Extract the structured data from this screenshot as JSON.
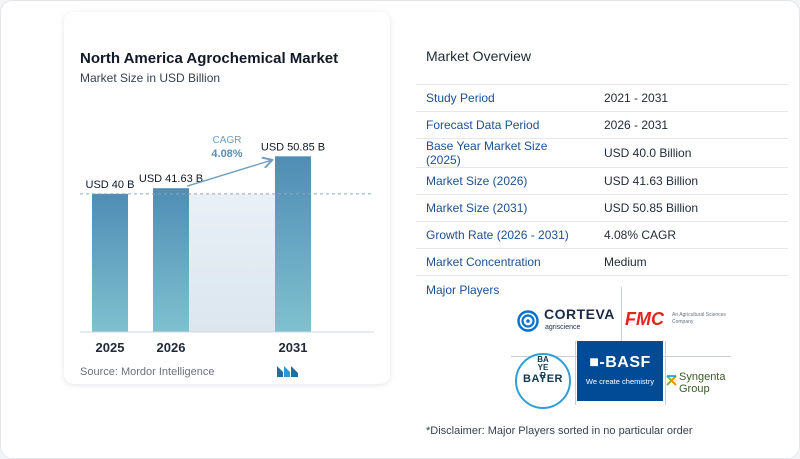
{
  "chart_data": {
    "type": "bar",
    "title": "North America Agrochemical Market",
    "subtitle": "Market Size in USD Billion",
    "categories": [
      "2025",
      "2026",
      "2031"
    ],
    "values": [
      40,
      41.63,
      50.85
    ],
    "data_labels": [
      "USD 40 B",
      "USD 41.63 B",
      "USD 50.85 B"
    ],
    "ylim": [
      0,
      55
    ],
    "annotation": {
      "label": "CAGR",
      "value": "4.08%"
    },
    "bar_color": "#5a9bc0",
    "highlight_color": "#e6eef5",
    "reference_line": "dashed at the 2025 value"
  },
  "source": "Source:  Mordor Intelligence",
  "overview": {
    "title": "Market Overview",
    "rows": [
      {
        "label": "Study Period",
        "value": "2021 - 2031"
      },
      {
        "label": "Forecast Data Period",
        "value": "2026 - 2031"
      },
      {
        "label": "Base Year Market Size (2025)",
        "value": "USD 40.0 Billion"
      },
      {
        "label": "Market Size (2026)",
        "value": "USD 41.63 Billion"
      },
      {
        "label": "Market Size (2031)",
        "value": "USD 50.85 Billion"
      },
      {
        "label": "Growth Rate (2026 - 2031)",
        "value": "4.08% CAGR"
      },
      {
        "label": "Market Concentration",
        "value": "Medium"
      }
    ]
  },
  "players": {
    "title": "Major Players",
    "corteva": {
      "name": "CORTEVA",
      "tagline": "agriscience"
    },
    "fmc": {
      "name": "FMC",
      "tagline": "An Agricultural Sciences Company"
    },
    "bayer": {
      "horizontal": "BAYER",
      "vertical": "BAYER"
    },
    "basf": {
      "name": "■-BASF",
      "tagline": "We create chemistry"
    },
    "syngenta": {
      "line1": "Syngenta",
      "line2": "Group"
    }
  },
  "disclaimer": "*Disclaimer: Major Players sorted in no particular order",
  "colors": {
    "label_blue": "#1d4f91",
    "bar": "#5a9bc0",
    "basf_blue": "#004a96",
    "fmc_red": "#e1251b",
    "bayer_blue": "#2f9fd8"
  },
  "icons": [
    "mordor-intelligence-logo",
    "corteva-icon",
    "syngenta-icon"
  ]
}
